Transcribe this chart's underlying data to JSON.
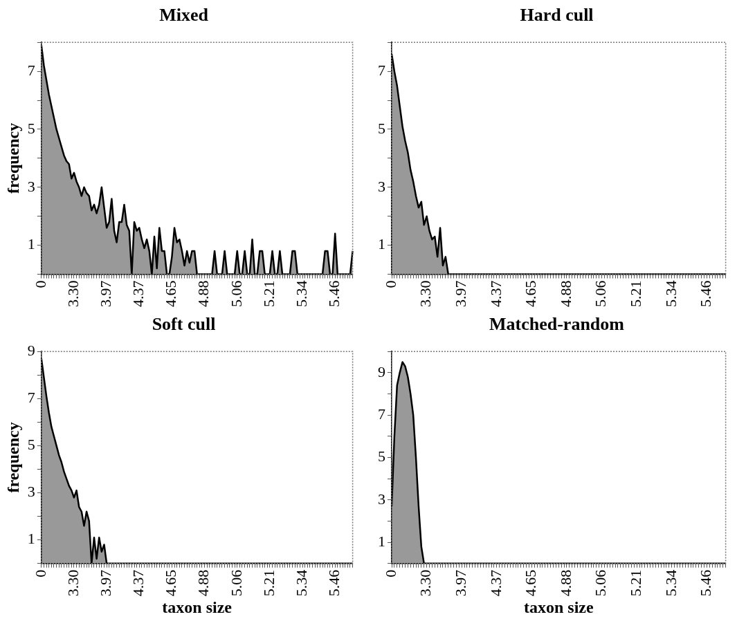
{
  "chart_data": [
    {
      "type": "area",
      "title": "Mixed",
      "ylabel": "frequency",
      "categories": [
        "0",
        null,
        null,
        null,
        null,
        null,
        null,
        null,
        null,
        null,
        null,
        null,
        null,
        "3.30",
        null,
        null,
        null,
        null,
        null,
        null,
        null,
        null,
        null,
        null,
        null,
        null,
        "3.97",
        null,
        null,
        null,
        null,
        null,
        null,
        null,
        null,
        null,
        null,
        null,
        null,
        "4.37",
        null,
        null,
        null,
        null,
        null,
        null,
        null,
        null,
        null,
        null,
        null,
        null,
        "4.65",
        null,
        null,
        null,
        null,
        null,
        null,
        null,
        null,
        null,
        null,
        null,
        null,
        "4.88",
        null,
        null,
        null,
        null,
        null,
        null,
        null,
        null,
        null,
        null,
        null,
        null,
        "5.06",
        null,
        null,
        null,
        null,
        null,
        null,
        null,
        null,
        null,
        null,
        null,
        null,
        "5.21",
        null,
        null,
        null,
        null,
        null,
        null,
        null,
        null,
        null,
        null,
        null,
        null,
        "5.34",
        null,
        null,
        null,
        null,
        null,
        null,
        null,
        null,
        null,
        null,
        null,
        null,
        "5.46",
        null,
        null,
        null,
        null,
        null,
        null,
        null
      ],
      "series": [
        {
          "color": "#000000",
          "values": [
            7.9,
            7.2,
            6.7,
            6.2,
            5.8,
            5.4,
            5.0,
            4.7,
            4.4,
            4.1,
            3.9,
            3.8,
            3.3,
            3.5,
            3.2,
            3.0,
            2.7,
            3.0,
            2.8,
            2.7,
            2.2,
            2.4,
            2.1,
            2.4,
            3.0,
            2.3,
            1.6,
            1.8,
            2.6,
            1.5,
            1.1,
            1.8,
            1.8,
            2.4,
            1.7,
            1.5,
            0,
            1.8,
            1.5,
            1.6,
            1.2,
            0.9,
            1.2,
            0.8,
            0,
            1.3,
            0.2,
            1.6,
            0.8,
            0.8,
            0,
            0,
            0.6,
            1.6,
            1.1,
            1.2,
            0.8,
            0.3,
            0.8,
            0.4,
            0.8,
            0.8,
            0,
            0,
            0,
            0,
            0,
            0,
            0,
            0.8,
            0,
            0,
            0,
            0.8,
            0,
            0,
            0,
            0,
            0.8,
            0,
            0,
            0.8,
            0,
            0,
            1.2,
            0,
            0,
            0.8,
            0.8,
            0,
            0,
            0,
            0.8,
            0,
            0,
            0.8,
            0,
            0,
            0,
            0,
            0.8,
            0.8,
            0,
            0,
            0,
            0,
            0,
            0,
            0,
            0,
            0,
            0,
            0,
            0.8,
            0.8,
            0,
            0,
            1.4,
            0,
            0,
            0,
            0,
            0,
            0,
            0.8
          ]
        }
      ],
      "ylim": [
        0,
        8
      ],
      "yticks": [
        {
          "value": 0,
          "label": null
        },
        1,
        {
          "value": 2,
          "label": null
        },
        3,
        {
          "value": 4,
          "label": null
        },
        5,
        {
          "value": 6,
          "label": null
        },
        7,
        {
          "value": 8,
          "label": null
        }
      ]
    },
    {
      "type": "area",
      "title": "Hard cull",
      "categories": [
        "0",
        null,
        null,
        null,
        null,
        null,
        null,
        null,
        null,
        null,
        null,
        null,
        null,
        "3.30",
        null,
        null,
        null,
        null,
        null,
        null,
        null,
        null,
        null,
        null,
        null,
        null,
        "3.97",
        null,
        null,
        null,
        null,
        null,
        null,
        null,
        null,
        null,
        null,
        null,
        null,
        "4.37",
        null,
        null,
        null,
        null,
        null,
        null,
        null,
        null,
        null,
        null,
        null,
        null,
        "4.65",
        null,
        null,
        null,
        null,
        null,
        null,
        null,
        null,
        null,
        null,
        null,
        null,
        "4.88",
        null,
        null,
        null,
        null,
        null,
        null,
        null,
        null,
        null,
        null,
        null,
        null,
        "5.06",
        null,
        null,
        null,
        null,
        null,
        null,
        null,
        null,
        null,
        null,
        null,
        null,
        "5.21",
        null,
        null,
        null,
        null,
        null,
        null,
        null,
        null,
        null,
        null,
        null,
        null,
        "5.34",
        null,
        null,
        null,
        null,
        null,
        null,
        null,
        null,
        null,
        null,
        null,
        null,
        "5.46",
        null,
        null,
        null,
        null,
        null,
        null,
        null
      ],
      "series": [
        {
          "color": "#000000",
          "values": [
            7.6,
            7.0,
            6.5,
            5.8,
            5.1,
            4.6,
            4.2,
            3.6,
            3.2,
            2.7,
            2.3,
            2.5,
            1.7,
            2.0,
            1.5,
            1.2,
            1.3,
            0.6,
            1.6,
            0.3,
            0.6,
            0,
            0,
            0,
            0,
            0,
            0,
            0,
            0,
            0,
            0,
            0,
            0,
            0,
            0,
            0,
            0,
            0,
            0,
            0,
            0,
            0,
            0,
            0,
            0,
            0,
            0,
            0,
            0,
            0,
            0,
            0,
            0,
            0,
            0,
            0,
            0,
            0,
            0,
            0,
            0,
            0,
            0,
            0,
            0,
            0,
            0,
            0,
            0,
            0,
            0,
            0,
            0,
            0,
            0,
            0,
            0,
            0,
            0,
            0,
            0,
            0,
            0,
            0,
            0,
            0,
            0,
            0,
            0,
            0,
            0,
            0,
            0,
            0,
            0,
            0,
            0,
            0,
            0,
            0,
            0,
            0,
            0,
            0,
            0,
            0,
            0,
            0,
            0,
            0,
            0,
            0,
            0,
            0,
            0,
            0,
            0,
            0,
            0,
            0,
            0,
            0,
            0,
            0,
            0
          ]
        }
      ],
      "ylim": [
        0,
        8
      ],
      "yticks": [
        {
          "value": 0,
          "label": null
        },
        1,
        {
          "value": 2,
          "label": null
        },
        3,
        {
          "value": 4,
          "label": null
        },
        5,
        {
          "value": 6,
          "label": null
        },
        7,
        {
          "value": 8,
          "label": null
        }
      ]
    },
    {
      "type": "area",
      "title": "Soft cull",
      "xlabel": "taxon size",
      "ylabel": "frequency",
      "categories": [
        "0",
        null,
        null,
        null,
        null,
        null,
        null,
        null,
        null,
        null,
        null,
        null,
        null,
        "3.30",
        null,
        null,
        null,
        null,
        null,
        null,
        null,
        null,
        null,
        null,
        null,
        null,
        "3.97",
        null,
        null,
        null,
        null,
        null,
        null,
        null,
        null,
        null,
        null,
        null,
        null,
        "4.37",
        null,
        null,
        null,
        null,
        null,
        null,
        null,
        null,
        null,
        null,
        null,
        null,
        "4.65",
        null,
        null,
        null,
        null,
        null,
        null,
        null,
        null,
        null,
        null,
        null,
        null,
        "4.88",
        null,
        null,
        null,
        null,
        null,
        null,
        null,
        null,
        null,
        null,
        null,
        null,
        "5.06",
        null,
        null,
        null,
        null,
        null,
        null,
        null,
        null,
        null,
        null,
        null,
        null,
        "5.21",
        null,
        null,
        null,
        null,
        null,
        null,
        null,
        null,
        null,
        null,
        null,
        null,
        "5.34",
        null,
        null,
        null,
        null,
        null,
        null,
        null,
        null,
        null,
        null,
        null,
        null,
        "5.46",
        null,
        null,
        null,
        null,
        null,
        null,
        null
      ],
      "series": [
        {
          "color": "#000000",
          "values": [
            8.7,
            7.9,
            7.1,
            6.4,
            5.8,
            5.4,
            5.0,
            4.6,
            4.3,
            3.9,
            3.6,
            3.3,
            3.1,
            2.8,
            3.1,
            2.4,
            2.2,
            1.6,
            2.2,
            1.8,
            0,
            1.1,
            0.2,
            1.1,
            0.5,
            0.8,
            0,
            0,
            0,
            0,
            0,
            0,
            0,
            0,
            0,
            0,
            0,
            0,
            0,
            0,
            0,
            0,
            0,
            0,
            0,
            0,
            0,
            0,
            0,
            0,
            0,
            0,
            0,
            0,
            0,
            0,
            0,
            0,
            0,
            0,
            0,
            0,
            0,
            0,
            0,
            0,
            0,
            0,
            0,
            0,
            0,
            0,
            0,
            0,
            0,
            0,
            0,
            0,
            0,
            0,
            0,
            0,
            0,
            0,
            0,
            0,
            0,
            0,
            0,
            0,
            0,
            0,
            0,
            0,
            0,
            0,
            0,
            0,
            0,
            0,
            0,
            0,
            0,
            0,
            0,
            0,
            0,
            0,
            0,
            0,
            0,
            0,
            0,
            0,
            0,
            0,
            0,
            0,
            0,
            0,
            0,
            0,
            0,
            0,
            0
          ]
        }
      ],
      "ylim": [
        0,
        9
      ],
      "yticks": [
        {
          "value": 0,
          "label": null
        },
        1,
        {
          "value": 2,
          "label": null
        },
        3,
        {
          "value": 4,
          "label": null
        },
        5,
        {
          "value": 6,
          "label": null
        },
        7,
        {
          "value": 8,
          "label": null
        },
        9
      ]
    },
    {
      "type": "area",
      "title": "Matched-random",
      "xlabel": "taxon size",
      "categories": [
        "0",
        null,
        null,
        null,
        null,
        null,
        null,
        null,
        null,
        null,
        null,
        null,
        null,
        "3.30",
        null,
        null,
        null,
        null,
        null,
        null,
        null,
        null,
        null,
        null,
        null,
        null,
        "3.97",
        null,
        null,
        null,
        null,
        null,
        null,
        null,
        null,
        null,
        null,
        null,
        null,
        "4.37",
        null,
        null,
        null,
        null,
        null,
        null,
        null,
        null,
        null,
        null,
        null,
        null,
        "4.65",
        null,
        null,
        null,
        null,
        null,
        null,
        null,
        null,
        null,
        null,
        null,
        null,
        "4.88",
        null,
        null,
        null,
        null,
        null,
        null,
        null,
        null,
        null,
        null,
        null,
        null,
        "5.06",
        null,
        null,
        null,
        null,
        null,
        null,
        null,
        null,
        null,
        null,
        null,
        null,
        "5.21",
        null,
        null,
        null,
        null,
        null,
        null,
        null,
        null,
        null,
        null,
        null,
        null,
        "5.34",
        null,
        null,
        null,
        null,
        null,
        null,
        null,
        null,
        null,
        null,
        null,
        null,
        "5.46",
        null,
        null,
        null,
        null,
        null,
        null,
        null
      ],
      "series": [
        {
          "color": "#000000",
          "values": [
            2.7,
            6.0,
            8.4,
            9.0,
            9.5,
            9.3,
            8.8,
            8.0,
            7.0,
            5.0,
            2.7,
            0.8,
            0,
            0,
            0,
            0,
            0,
            0,
            0,
            0,
            0,
            0,
            0,
            0,
            0,
            0,
            0,
            0,
            0,
            0,
            0,
            0,
            0,
            0,
            0,
            0,
            0,
            0,
            0,
            0,
            0,
            0,
            0,
            0,
            0,
            0,
            0,
            0,
            0,
            0,
            0,
            0,
            0,
            0,
            0,
            0,
            0,
            0,
            0,
            0,
            0,
            0,
            0,
            0,
            0,
            0,
            0,
            0,
            0,
            0,
            0,
            0,
            0,
            0,
            0,
            0,
            0,
            0,
            0,
            0,
            0,
            0,
            0,
            0,
            0,
            0,
            0,
            0,
            0,
            0,
            0,
            0,
            0,
            0,
            0,
            0,
            0,
            0,
            0,
            0,
            0,
            0,
            0,
            0,
            0,
            0,
            0,
            0,
            0,
            0,
            0,
            0,
            0,
            0,
            0,
            0,
            0,
            0,
            0,
            0,
            0,
            0,
            0,
            0,
            0
          ]
        }
      ],
      "ylim": [
        0,
        10
      ],
      "yticks": [
        {
          "value": 0,
          "label": null
        },
        1,
        {
          "value": 2,
          "label": null
        },
        3,
        {
          "value": 4,
          "label": null
        },
        5,
        {
          "value": 6,
          "label": null
        },
        7,
        {
          "value": 8,
          "label": null
        },
        9,
        {
          "value": 10,
          "label": null
        }
      ]
    }
  ]
}
